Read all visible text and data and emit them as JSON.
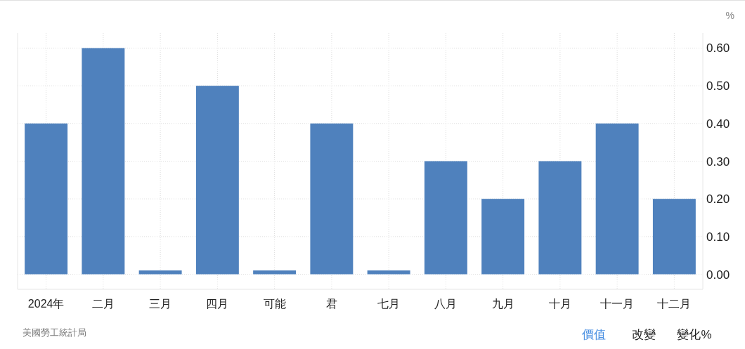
{
  "chart_data": {
    "type": "bar",
    "categories": [
      "2024年",
      "二月",
      "三月",
      "四月",
      "可能",
      "君",
      "七月",
      "八月",
      "九月",
      "十月",
      "十一月",
      "十二月"
    ],
    "values": [
      0.4,
      0.6,
      0.01,
      0.5,
      0.01,
      0.4,
      0.01,
      0.3,
      0.2,
      0.3,
      0.4,
      0.2
    ],
    "color": "#4f81bd",
    "ylabel": "%",
    "ylim": [
      -0.04,
      0.64
    ],
    "yticks": [
      {
        "value": 0,
        "label": "0.00"
      },
      {
        "value": 0.1,
        "label": "0.10"
      },
      {
        "value": 0.2,
        "label": "0.20"
      },
      {
        "value": 0.3,
        "label": "0.30"
      },
      {
        "value": 0.4,
        "label": "0.40"
      },
      {
        "value": 0.5,
        "label": "0.50"
      },
      {
        "value": 0.6,
        "label": "0.60"
      }
    ],
    "grid": true,
    "annotations": [
      "美國勞工統計局",
      "價值",
      "改變",
      "變化%"
    ]
  }
}
